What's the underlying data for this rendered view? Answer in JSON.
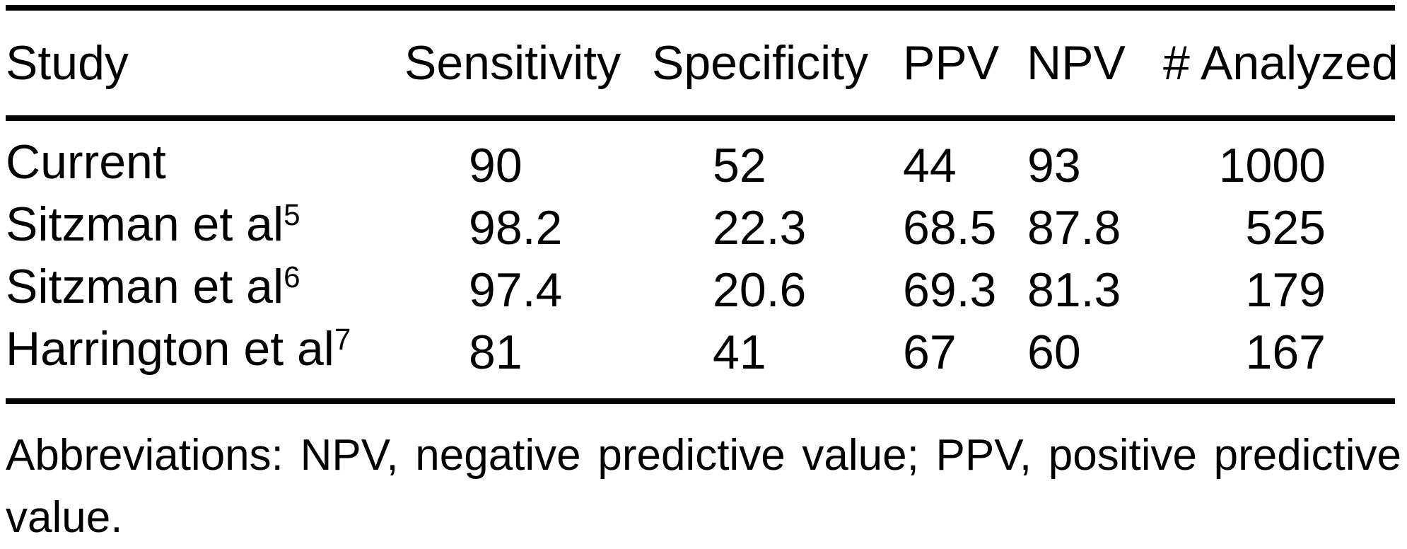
{
  "colors": {
    "text": "#000000",
    "background": "#ffffff",
    "rule": "#000000"
  },
  "table": {
    "headers": {
      "study": "Study",
      "sensitivity": "Sensitivity",
      "specificity": "Specificity",
      "ppv": "PPV",
      "npv": "NPV",
      "analyzed": "# Analyzed"
    },
    "rows": [
      {
        "study": "Current",
        "ref": "",
        "sensitivity": "90",
        "specificity": "52",
        "ppv": "44",
        "npv": "93",
        "analyzed": "1000"
      },
      {
        "study": "Sitzman et al",
        "ref": "5",
        "sensitivity": "98.2",
        "specificity": "22.3",
        "ppv": "68.5",
        "npv": "87.8",
        "analyzed": "525"
      },
      {
        "study": "Sitzman et al",
        "ref": "6",
        "sensitivity": "97.4",
        "specificity": "20.6",
        "ppv": "69.3",
        "npv": "81.3",
        "analyzed": "179"
      },
      {
        "study": "Harrington et al",
        "ref": "7",
        "sensitivity": "81",
        "specificity": "41",
        "ppv": "67",
        "npv": "60",
        "analyzed": "167"
      }
    ]
  },
  "footnote": {
    "line1": "Abbreviations: NPV, negative predictive value; PPV, positive predictive",
    "line2": "value."
  }
}
